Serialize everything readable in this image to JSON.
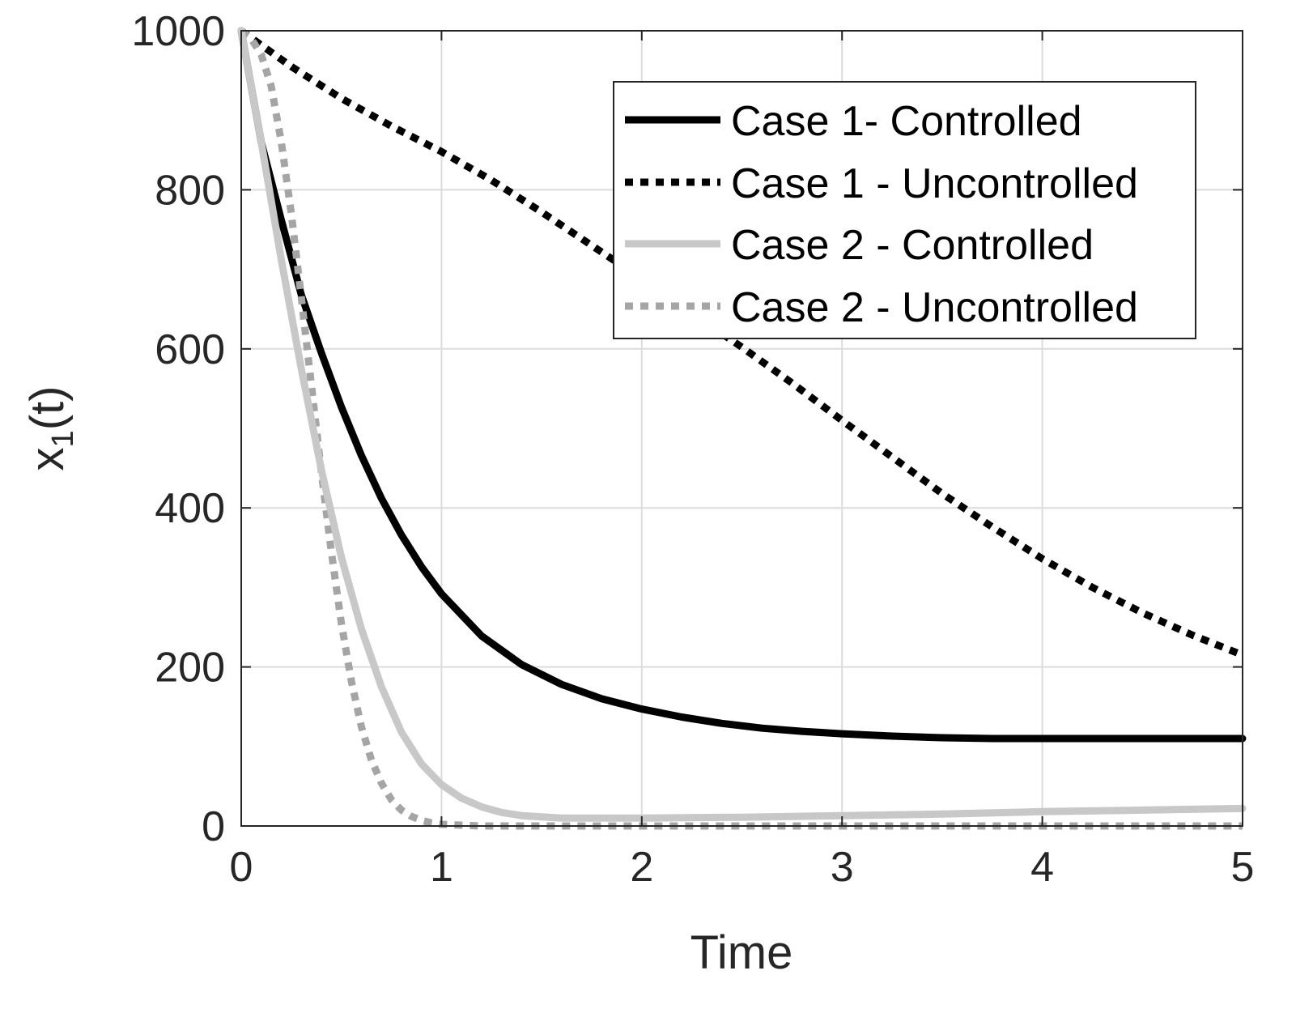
{
  "chart_data": {
    "type": "line",
    "title": "",
    "xlabel": "Time",
    "ylabel_main": "x",
    "ylabel_sub": "1",
    "ylabel_tail": "(t)",
    "xlim": [
      0,
      5
    ],
    "ylim": [
      0,
      1000
    ],
    "xticks": [
      0,
      1,
      2,
      3,
      4,
      5
    ],
    "yticks": [
      0,
      200,
      400,
      600,
      800,
      1000
    ],
    "grid": true,
    "legend_position": "top-right",
    "series": [
      {
        "name": "Case 1- Controlled",
        "color": "#000000",
        "style": "solid",
        "x": [
          0,
          0.1,
          0.2,
          0.3,
          0.4,
          0.5,
          0.6,
          0.7,
          0.8,
          0.9,
          1.0,
          1.2,
          1.4,
          1.6,
          1.8,
          2.0,
          2.2,
          2.4,
          2.6,
          2.8,
          3.0,
          3.25,
          3.5,
          3.75,
          4.0,
          4.25,
          4.5,
          4.75,
          5.0
        ],
        "y": [
          1000,
          860,
          762,
          668,
          595,
          527,
          466,
          412,
          366,
          326,
          292,
          239,
          203,
          178,
          160,
          147,
          137,
          129,
          123,
          119,
          116,
          113,
          111,
          110,
          110,
          110,
          110,
          110,
          110
        ]
      },
      {
        "name": "Case 1 - Uncontrolled",
        "color": "#000000",
        "style": "dotted",
        "x": [
          0,
          0.25,
          0.5,
          0.75,
          1.0,
          1.25,
          1.5,
          1.75,
          2.0,
          2.25,
          2.5,
          2.75,
          3.0,
          3.25,
          3.5,
          3.75,
          4.0,
          4.25,
          4.5,
          4.75,
          5.0
        ],
        "y": [
          1000,
          955,
          915,
          880,
          848,
          812,
          772,
          730,
          688,
          645,
          602,
          557,
          510,
          464,
          418,
          376,
          336,
          300,
          268,
          240,
          215
        ]
      },
      {
        "name": "Case 2 - Controlled",
        "color": "#c8c8c8",
        "style": "solid",
        "x": [
          0,
          0.1,
          0.2,
          0.3,
          0.4,
          0.5,
          0.6,
          0.7,
          0.8,
          0.9,
          1.0,
          1.1,
          1.2,
          1.3,
          1.4,
          1.6,
          1.8,
          2.0,
          2.5,
          3.0,
          3.5,
          4.0,
          4.5,
          5.0
        ],
        "y": [
          1000,
          860,
          712,
          575,
          448,
          338,
          248,
          175,
          118,
          78,
          52,
          35,
          24,
          17,
          13,
          10,
          10,
          10,
          11,
          13,
          15,
          18,
          20,
          22
        ]
      },
      {
        "name": "Case 2 - Uncontrolled",
        "color": "#a5a5a5",
        "style": "dotted",
        "x": [
          0,
          0.05,
          0.1,
          0.15,
          0.2,
          0.25,
          0.3,
          0.35,
          0.4,
          0.45,
          0.5,
          0.55,
          0.6,
          0.65,
          0.7,
          0.75,
          0.8,
          0.85,
          0.9,
          0.95,
          1.0,
          1.1,
          1.2,
          1.4,
          1.6,
          2.0,
          3.0,
          4.0,
          5.0
        ],
        "y": [
          1000,
          990,
          970,
          930,
          860,
          770,
          665,
          555,
          445,
          345,
          255,
          182,
          125,
          83,
          54,
          33,
          20,
          12,
          7,
          4,
          2,
          1,
          0,
          0,
          0,
          0,
          0,
          0,
          0
        ]
      }
    ]
  }
}
